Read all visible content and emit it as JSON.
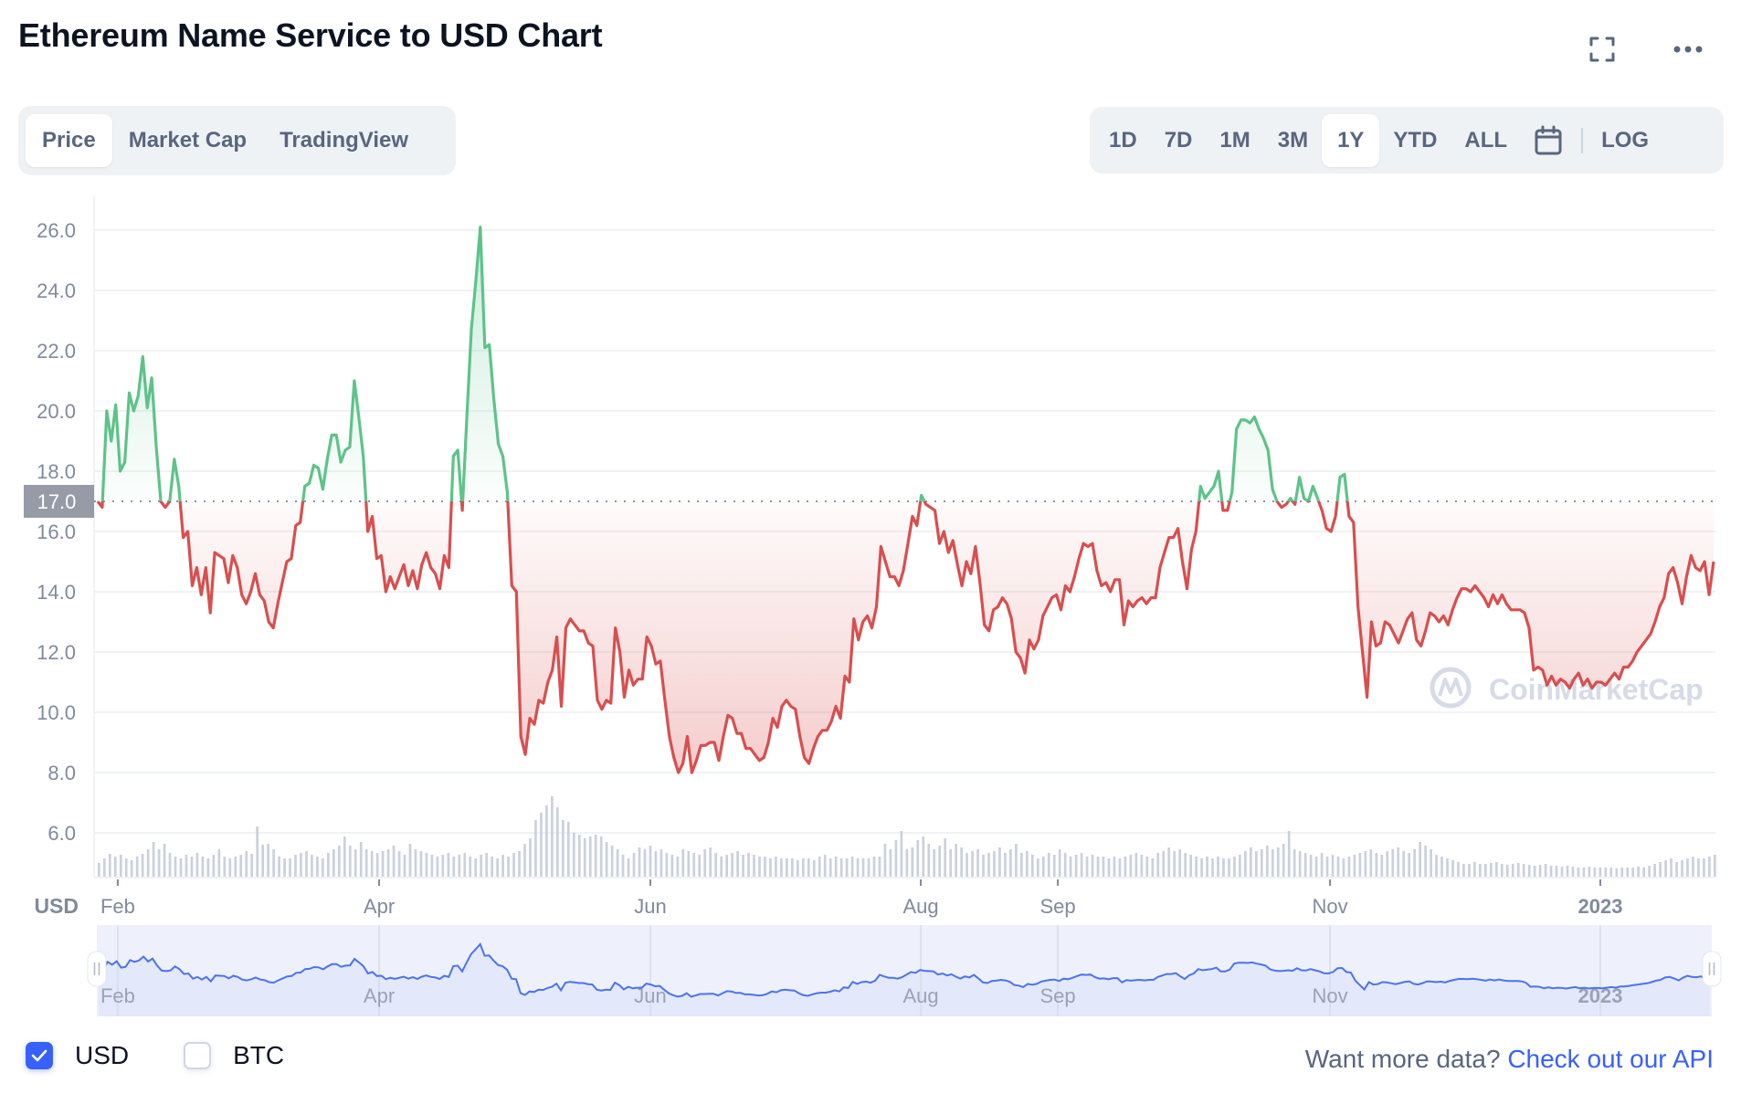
{
  "header": {
    "title": "Ethereum Name Service to USD Chart",
    "fullscreen_icon": "expand-corners-icon",
    "more_icon": "more-horizontal-icon"
  },
  "chart_tabs": [
    {
      "label": "Price",
      "active": true
    },
    {
      "label": "Market Cap",
      "active": false
    },
    {
      "label": "TradingView",
      "active": false
    }
  ],
  "range_tabs": [
    {
      "label": "1D",
      "active": false
    },
    {
      "label": "7D",
      "active": false
    },
    {
      "label": "1M",
      "active": false
    },
    {
      "label": "3M",
      "active": false
    },
    {
      "label": "1Y",
      "active": true
    },
    {
      "label": "YTD",
      "active": false
    },
    {
      "label": "ALL",
      "active": false
    }
  ],
  "calendar_icon": "calendar-icon",
  "log_label": "LOG",
  "currency_axis_label": "USD",
  "watermark": "CoinMarketCap",
  "reference_line_label": "17.0",
  "colors": {
    "up": "#5dc389",
    "down": "#d94e4e",
    "navigator_line": "#4b73f0",
    "navigator_fill": "#e0e6fa",
    "volume": "#cbd0de",
    "grid": "#f1f2f4",
    "axis_text": "#808a9d",
    "accent": "#3861fb"
  },
  "legend": [
    {
      "label": "USD",
      "checked": true
    },
    {
      "label": "BTC",
      "checked": false
    }
  ],
  "footer": {
    "prompt": "Want more data?",
    "link": "Check out our API"
  },
  "chart_data": {
    "type": "line",
    "title": "Ethereum Name Service to USD Chart",
    "xlabel": "",
    "ylabel": "USD",
    "ylim": [
      4.7,
      27.4
    ],
    "y_ticks": [
      6.0,
      8.0,
      10.0,
      12.0,
      14.0,
      16.0,
      18.0,
      20.0,
      22.0,
      24.0,
      26.0
    ],
    "x_ticks": [
      {
        "label": "Feb",
        "pos": 0.0146,
        "bold": false
      },
      {
        "label": "Apr",
        "pos": 0.1758,
        "bold": false
      },
      {
        "label": "Jun",
        "pos": 0.3431,
        "bold": false
      },
      {
        "label": "Aug",
        "pos": 0.5099,
        "bold": false
      },
      {
        "label": "Sep",
        "pos": 0.5944,
        "bold": false
      },
      {
        "label": "Nov",
        "pos": 0.7623,
        "bold": false
      },
      {
        "label": "2023",
        "pos": 0.929,
        "bold": true
      }
    ],
    "reference_value": 17.0,
    "grid": true,
    "series": [
      {
        "name": "Price (USD)",
        "values": [
          17.0,
          16.8,
          20.0,
          19.0,
          20.2,
          18.0,
          18.3,
          20.6,
          20.0,
          20.5,
          21.8,
          20.1,
          21.1,
          18.8,
          17.0,
          16.8,
          17.0,
          18.4,
          17.5,
          15.8,
          16.0,
          14.2,
          14.8,
          13.9,
          14.8,
          13.3,
          15.3,
          15.2,
          15.1,
          14.3,
          15.2,
          14.8,
          13.9,
          13.6,
          14.0,
          14.6,
          13.9,
          13.7,
          13.0,
          12.8,
          13.6,
          14.3,
          15.0,
          15.1,
          16.2,
          16.3,
          17.5,
          17.6,
          18.2,
          18.1,
          17.4,
          18.4,
          19.2,
          19.2,
          18.3,
          18.7,
          18.8,
          21.0,
          19.8,
          18.5,
          16.0,
          16.5,
          15.1,
          15.2,
          14.0,
          14.5,
          14.1,
          14.5,
          14.9,
          14.2,
          14.7,
          14.1,
          14.9,
          15.3,
          14.8,
          14.6,
          14.1,
          15.2,
          14.8,
          18.5,
          18.7,
          16.7,
          19.8,
          22.7,
          24.3,
          26.1,
          22.1,
          22.2,
          20.4,
          18.9,
          18.5,
          17.3,
          14.2,
          14.0,
          9.2,
          8.6,
          9.8,
          9.6,
          10.4,
          10.3,
          11.0,
          11.4,
          12.5,
          10.2,
          12.8,
          13.1,
          12.9,
          12.7,
          12.7,
          12.3,
          12.2,
          10.4,
          10.1,
          10.4,
          10.3,
          12.8,
          12.0,
          10.5,
          11.4,
          10.9,
          11.1,
          11.1,
          12.5,
          12.2,
          11.6,
          11.7,
          10.4,
          9.2,
          8.5,
          8.0,
          8.3,
          9.2,
          8.0,
          8.4,
          8.9,
          8.9,
          9.0,
          9.0,
          8.4,
          9.2,
          9.9,
          9.8,
          9.3,
          9.3,
          8.8,
          8.8,
          8.6,
          8.4,
          8.5,
          9.0,
          9.8,
          9.5,
          10.2,
          10.4,
          10.2,
          10.1,
          9.2,
          8.5,
          8.3,
          8.8,
          9.2,
          9.4,
          9.4,
          9.7,
          10.2,
          9.8,
          11.2,
          11.0,
          13.1,
          12.4,
          13.0,
          13.2,
          12.8,
          13.5,
          15.5,
          15.0,
          14.5,
          14.5,
          14.2,
          14.7,
          15.6,
          16.5,
          16.2,
          17.2,
          16.9,
          16.8,
          16.7,
          15.6,
          16.0,
          15.3,
          15.7,
          14.9,
          14.2,
          15.0,
          14.6,
          15.5,
          14.3,
          12.9,
          12.7,
          13.4,
          13.5,
          13.8,
          13.6,
          13.1,
          12.0,
          11.8,
          11.3,
          12.4,
          12.1,
          12.4,
          13.2,
          13.5,
          13.8,
          13.9,
          13.4,
          14.2,
          14.0,
          14.5,
          15.1,
          15.6,
          15.5,
          15.6,
          14.7,
          14.2,
          14.3,
          14.0,
          14.4,
          14.4,
          12.9,
          13.7,
          13.5,
          13.7,
          13.8,
          13.6,
          13.8,
          13.8,
          14.8,
          15.3,
          15.8,
          15.8,
          16.1,
          15.0,
          14.1,
          15.4,
          16.0,
          17.5,
          17.1,
          17.3,
          17.5,
          18.0,
          16.7,
          16.7,
          17.3,
          19.4,
          19.7,
          19.7,
          19.6,
          19.8,
          19.4,
          19.1,
          18.7,
          17.4,
          17.0,
          16.8,
          16.9,
          17.1,
          16.9,
          17.8,
          17.1,
          17.0,
          17.5,
          17.1,
          16.7,
          16.1,
          16.0,
          16.5,
          17.8,
          17.9,
          16.5,
          16.3,
          13.5,
          12.0,
          10.5,
          13.0,
          12.2,
          12.3,
          13.0,
          12.9,
          12.6,
          12.3,
          12.7,
          13.1,
          13.3,
          12.4,
          12.2,
          12.7,
          13.3,
          13.2,
          13.0,
          13.2,
          12.9,
          13.4,
          13.8,
          14.1,
          14.1,
          14.0,
          14.2,
          14.0,
          13.8,
          13.5,
          13.9,
          13.6,
          13.9,
          13.6,
          13.4,
          13.4,
          13.4,
          13.3,
          12.8,
          11.4,
          11.5,
          11.4,
          10.9,
          11.2,
          10.9,
          11.1,
          11.0,
          10.8,
          11.1,
          11.3,
          10.9,
          11.1,
          10.8,
          11.0,
          11.0,
          10.9,
          11.1,
          11.3,
          11.1,
          11.5,
          11.5,
          11.7,
          12.0,
          12.2,
          12.4,
          12.6,
          13.0,
          13.5,
          13.8,
          14.6,
          14.8,
          14.3,
          13.6,
          14.5,
          15.2,
          14.8,
          14.7,
          15.0,
          13.9,
          15.0
        ]
      },
      {
        "name": "Volume (relative)",
        "values": [
          0.15,
          0.2,
          0.25,
          0.22,
          0.24,
          0.2,
          0.18,
          0.22,
          0.25,
          0.3,
          0.38,
          0.3,
          0.36,
          0.26,
          0.22,
          0.2,
          0.24,
          0.22,
          0.26,
          0.22,
          0.2,
          0.24,
          0.3,
          0.22,
          0.2,
          0.22,
          0.24,
          0.28,
          0.25,
          0.55,
          0.35,
          0.36,
          0.3,
          0.22,
          0.2,
          0.2,
          0.24,
          0.26,
          0.28,
          0.24,
          0.22,
          0.2,
          0.26,
          0.3,
          0.34,
          0.44,
          0.34,
          0.3,
          0.38,
          0.3,
          0.28,
          0.26,
          0.28,
          0.3,
          0.34,
          0.28,
          0.24,
          0.36,
          0.3,
          0.28,
          0.26,
          0.24,
          0.22,
          0.24,
          0.26,
          0.22,
          0.24,
          0.26,
          0.22,
          0.2,
          0.24,
          0.26,
          0.22,
          0.2,
          0.24,
          0.22,
          0.26,
          0.28,
          0.36,
          0.42,
          0.62,
          0.7,
          0.78,
          0.88,
          0.76,
          0.62,
          0.6,
          0.48,
          0.46,
          0.42,
          0.44,
          0.46,
          0.44,
          0.38,
          0.34,
          0.3,
          0.24,
          0.2,
          0.26,
          0.32,
          0.3,
          0.34,
          0.28,
          0.3,
          0.26,
          0.24,
          0.22,
          0.3,
          0.28,
          0.26,
          0.24,
          0.3,
          0.32,
          0.26,
          0.22,
          0.24,
          0.26,
          0.28,
          0.24,
          0.26,
          0.24,
          0.22,
          0.22,
          0.2,
          0.22,
          0.2,
          0.2,
          0.2,
          0.18,
          0.2,
          0.2,
          0.18,
          0.22,
          0.24,
          0.2,
          0.22,
          0.2,
          0.2,
          0.22,
          0.2,
          0.2,
          0.2,
          0.22,
          0.22,
          0.36,
          0.3,
          0.4,
          0.5,
          0.3,
          0.32,
          0.4,
          0.44,
          0.36,
          0.3,
          0.34,
          0.42,
          0.3,
          0.36,
          0.32,
          0.26,
          0.28,
          0.3,
          0.24,
          0.26,
          0.28,
          0.32,
          0.26,
          0.3,
          0.36,
          0.26,
          0.28,
          0.24,
          0.2,
          0.22,
          0.26,
          0.24,
          0.3,
          0.26,
          0.22,
          0.24,
          0.26,
          0.22,
          0.24,
          0.22,
          0.22,
          0.2,
          0.22,
          0.2,
          0.22,
          0.24,
          0.26,
          0.24,
          0.22,
          0.2,
          0.26,
          0.28,
          0.32,
          0.28,
          0.3,
          0.26,
          0.24,
          0.22,
          0.2,
          0.22,
          0.2,
          0.22,
          0.2,
          0.2,
          0.22,
          0.24,
          0.28,
          0.32,
          0.28,
          0.3,
          0.34,
          0.3,
          0.32,
          0.36,
          0.5,
          0.3,
          0.28,
          0.26,
          0.24,
          0.22,
          0.26,
          0.22,
          0.24,
          0.22,
          0.2,
          0.22,
          0.24,
          0.26,
          0.28,
          0.3,
          0.26,
          0.24,
          0.28,
          0.3,
          0.32,
          0.28,
          0.26,
          0.3,
          0.38,
          0.34,
          0.3,
          0.24,
          0.22,
          0.2,
          0.18,
          0.16,
          0.14,
          0.14,
          0.16,
          0.14,
          0.14,
          0.15,
          0.16,
          0.14,
          0.13,
          0.14,
          0.15,
          0.14,
          0.13,
          0.12,
          0.13,
          0.14,
          0.12,
          0.12,
          0.11,
          0.12,
          0.11,
          0.1,
          0.1,
          0.11,
          0.1,
          0.1,
          0.1,
          0.1,
          0.09,
          0.1,
          0.1,
          0.1,
          0.11,
          0.1,
          0.12,
          0.14,
          0.16,
          0.18,
          0.2,
          0.16,
          0.18,
          0.2,
          0.22,
          0.2,
          0.2,
          0.22,
          0.24
        ]
      }
    ],
    "navigator": {
      "x_ticks": [
        "Feb",
        "Apr",
        "Jun",
        "Aug",
        "Sep",
        "Nov",
        "2023"
      ]
    }
  }
}
